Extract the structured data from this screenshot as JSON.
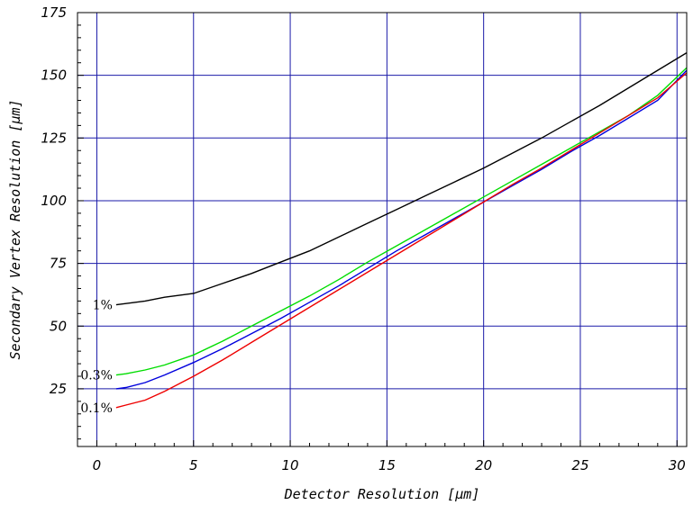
{
  "chart_data": {
    "type": "line",
    "title": "",
    "xlabel": "Detector  Resolution  [μm]",
    "ylabel": "Secondary Vertex Resolution [μm]",
    "xlim": [
      -1,
      30.5
    ],
    "ylim": [
      2,
      175
    ],
    "xticks": [
      0,
      5,
      10,
      15,
      20,
      25,
      30
    ],
    "yticks": [
      25,
      50,
      75,
      100,
      125,
      150,
      175
    ],
    "xtick_labels": [
      "0",
      "5",
      "10",
      "15",
      "20",
      "25",
      "30"
    ],
    "ytick_labels": [
      "25",
      "50",
      "75",
      "100",
      "125",
      "150",
      "175"
    ],
    "grid": true,
    "grid_color": "#1a1aa8",
    "series": [
      {
        "name": "1%",
        "color": "#000000",
        "x": [
          1,
          1.5,
          2.5,
          3.5,
          5,
          6.5,
          8,
          9.5,
          11,
          12.5,
          14,
          15.5,
          17,
          18.5,
          20,
          21.5,
          23,
          24.5,
          26,
          27.5,
          29,
          30.5
        ],
        "y": [
          58.5,
          59,
          60,
          61.5,
          63,
          67,
          71,
          75.5,
          80,
          85.5,
          91,
          96.5,
          102,
          107.5,
          113,
          119,
          125,
          131.5,
          138,
          145,
          152,
          159
        ]
      },
      {
        "name": "0.3%",
        "color": "#00dd00",
        "x": [
          1,
          1.5,
          2.5,
          3.5,
          5,
          6.5,
          8,
          9.5,
          11,
          12.5,
          14,
          15.5,
          17,
          18.5,
          20,
          21.5,
          23,
          24.5,
          26,
          27.5,
          29,
          30.5
        ],
        "y": [
          30.5,
          31,
          32.5,
          34.5,
          38.5,
          44,
          50,
          56,
          62,
          68.5,
          75.5,
          82,
          88.5,
          95,
          101.5,
          108,
          114.5,
          121,
          127.5,
          134,
          142,
          153
        ]
      },
      {
        "name": "",
        "color": "#0000dd",
        "x": [
          1,
          1.5,
          2.5,
          3.5,
          5,
          6.5,
          8,
          9.5,
          11,
          12.5,
          14,
          15.5,
          17,
          18.5,
          20,
          21.5,
          23,
          24.5,
          26,
          27.5,
          29,
          30.5
        ],
        "y": [
          25,
          25.5,
          27.5,
          30.5,
          35.5,
          41,
          47,
          53,
          59.5,
          66,
          73,
          80,
          86.5,
          93,
          99.5,
          106,
          112.5,
          119.5,
          126,
          133,
          140,
          152
        ]
      },
      {
        "name": "0.1%",
        "color": "#ee0000",
        "x": [
          1,
          1.5,
          2.5,
          3.5,
          5,
          6.5,
          8,
          9.5,
          11,
          12.5,
          14,
          15.5,
          17,
          18.5,
          20,
          21.5,
          23,
          24.5,
          26,
          27.5,
          29,
          30.5
        ],
        "y": [
          17.5,
          18.5,
          20.5,
          24,
          30,
          36.5,
          43.5,
          50.5,
          57.5,
          64.5,
          71.5,
          78.5,
          85.5,
          92.5,
          99.5,
          106.5,
          113,
          120,
          127,
          134,
          141,
          151
        ]
      }
    ]
  }
}
